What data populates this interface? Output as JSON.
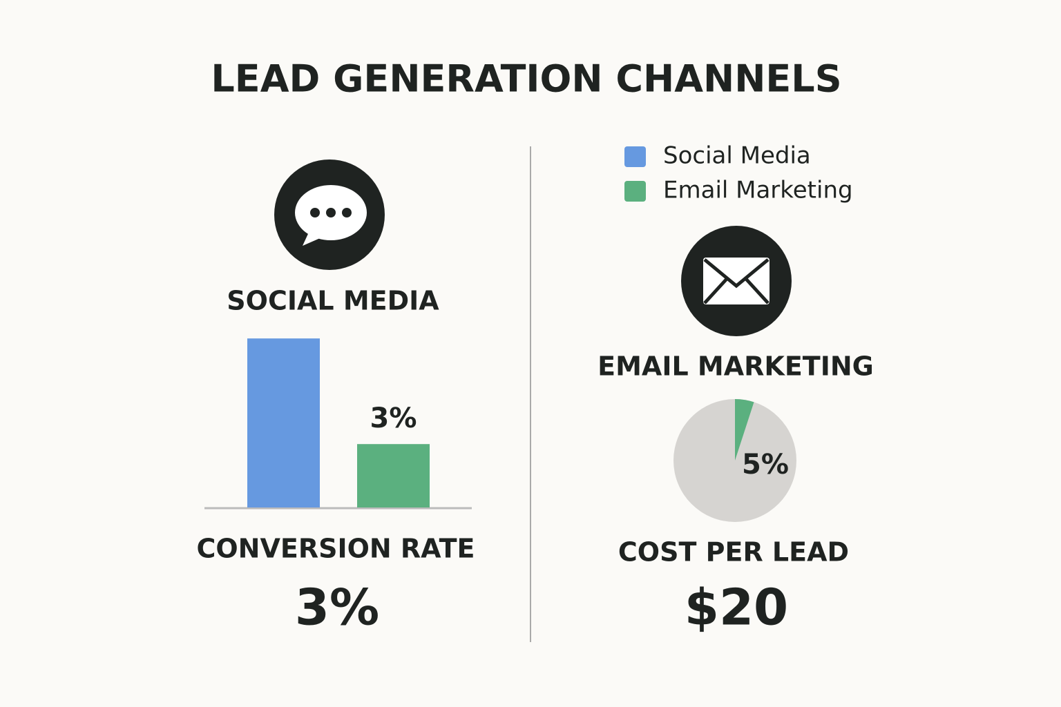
{
  "title": "LEAD GENERATION CHANNELS",
  "social_media": {
    "heading": "SOCIAL MEDIA",
    "metric_label": "CONVERSION RATE",
    "metric_value": "3%"
  },
  "email_marketing": {
    "heading": "EMAIL MARKETING",
    "metric_label": "COST PER LEAD",
    "metric_value": "$20"
  },
  "chart_data": [
    {
      "type": "bar",
      "categories": [
        null
      ],
      "series": [
        {
          "name": "Social Media",
          "color": "#6699e0",
          "values": [
            8
          ]
        },
        {
          "name": "Email Marketing",
          "color": "#5bb07f",
          "values": [
            3
          ],
          "value_labels": [
            "3%"
          ]
        }
      ]
    },
    {
      "type": "pie",
      "values": [
        5
      ],
      "value_labels": [
        "5%"
      ],
      "colors": [
        "#5bb07f"
      ],
      "background_color": "#d6d4d1"
    }
  ]
}
